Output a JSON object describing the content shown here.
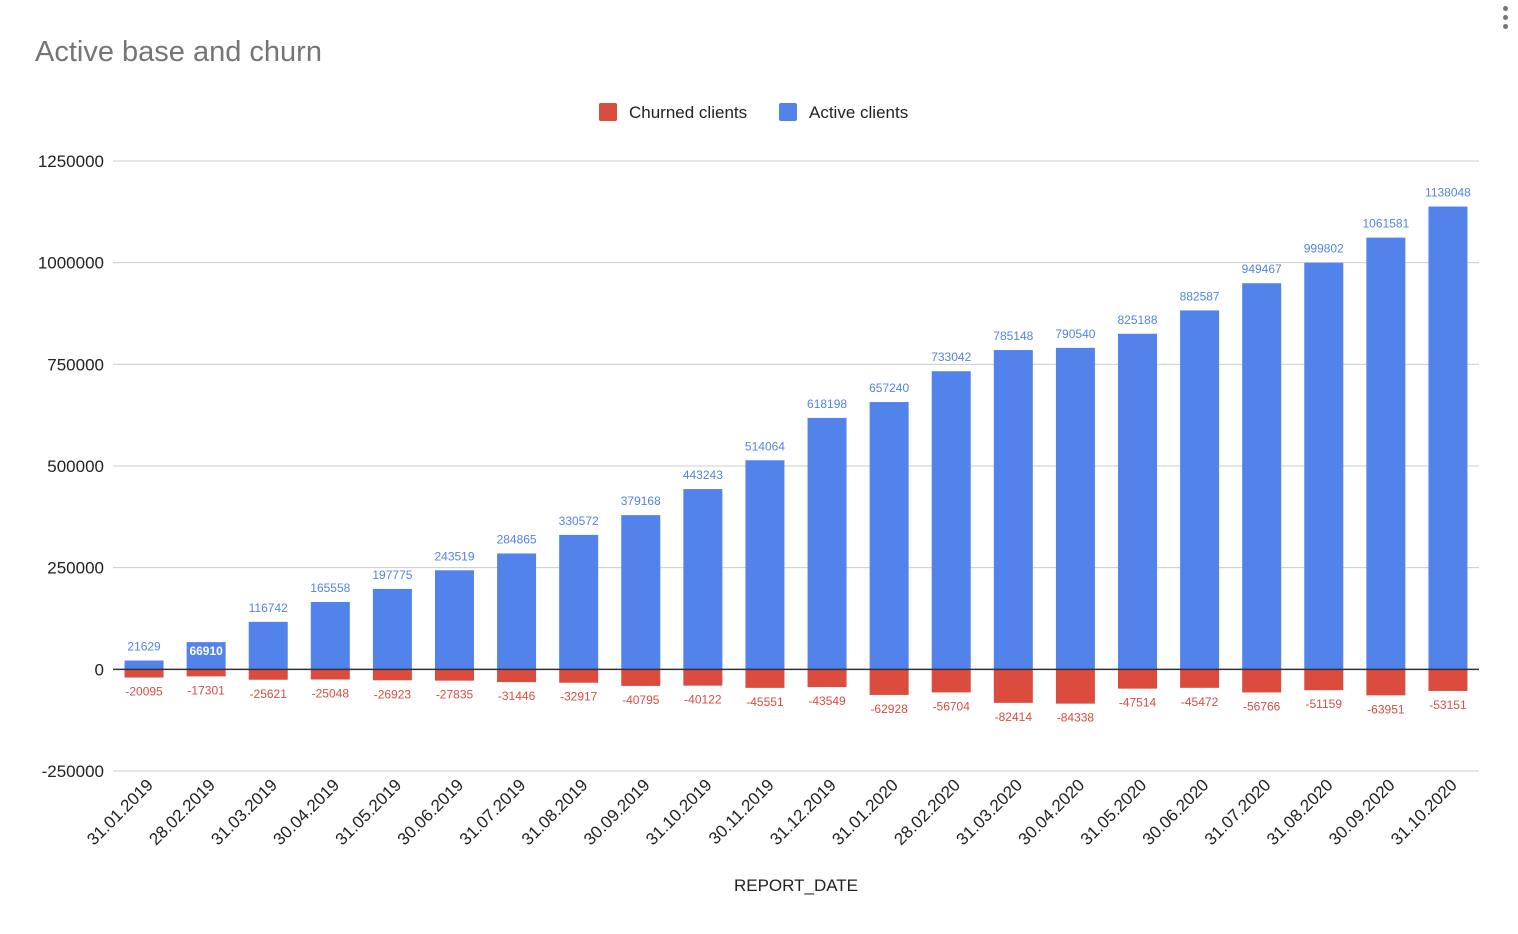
{
  "chart_data": {
    "type": "bar",
    "title": "Active base and churn",
    "xlabel": "REPORT_DATE",
    "ylabel": "",
    "ylim": [
      -250000,
      1250000
    ],
    "yticks": [
      1250000,
      1000000,
      750000,
      500000,
      250000,
      0,
      -250000
    ],
    "grid": true,
    "legend_position": "top",
    "categories": [
      "31.01.2019",
      "28.02.2019",
      "31.03.2019",
      "30.04.2019",
      "31.05.2019",
      "30.06.2019",
      "31.07.2019",
      "31.08.2019",
      "30.09.2019",
      "31.10.2019",
      "30.11.2019",
      "31.12.2019",
      "31.01.2020",
      "28.02.2020",
      "31.03.2020",
      "30.04.2020",
      "31.05.2020",
      "30.06.2020",
      "31.07.2020",
      "31.08.2020",
      "30.09.2020",
      "31.10.2020"
    ],
    "series": [
      {
        "name": "Churned clients",
        "color": "#db4c3f",
        "values": [
          -20095,
          -17301,
          -25621,
          -25048,
          -26923,
          -27835,
          -31446,
          -32917,
          -40795,
          -40122,
          -45551,
          -43549,
          -62928,
          -56704,
          -82414,
          -84338,
          -47514,
          -45472,
          -56766,
          -51159,
          -63951,
          -53151
        ]
      },
      {
        "name": "Active clients",
        "color": "#5283ea",
        "values": [
          21629,
          66910,
          116742,
          165558,
          197775,
          243519,
          284865,
          330572,
          379168,
          443243,
          514064,
          618198,
          657240,
          733042,
          785148,
          790540,
          825188,
          882587,
          949467,
          999802,
          1061581,
          1138048
        ]
      }
    ]
  },
  "icons": {
    "menu": "more-vertical-icon"
  }
}
